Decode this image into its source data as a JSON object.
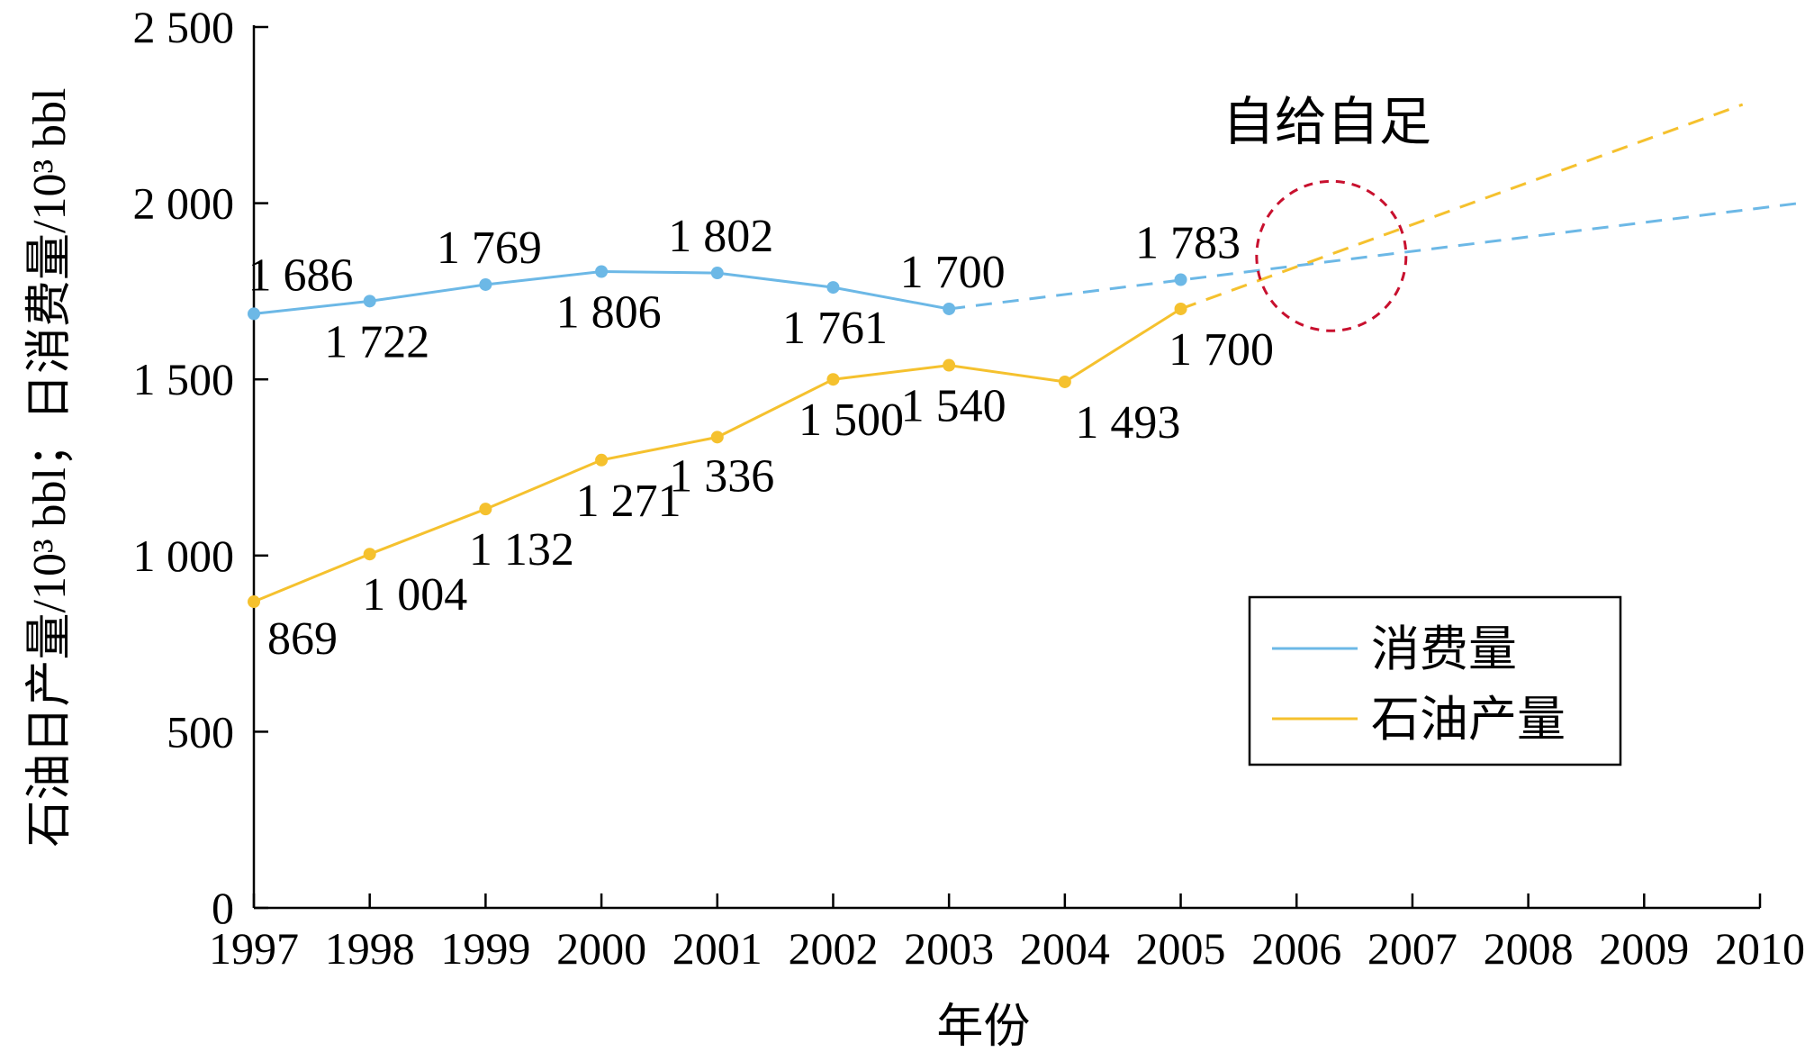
{
  "chart_data": {
    "type": "line",
    "xlabel": "年份",
    "ylabel": "石油日产量/10³ bbl；日消费量/10³ bbl",
    "x_categories": [
      "1997",
      "1998",
      "1999",
      "2000",
      "2001",
      "2002",
      "2003",
      "2004",
      "2005",
      "2006",
      "2007",
      "2008",
      "2009",
      "2010"
    ],
    "ylim": [
      0,
      2500
    ],
    "yticks": [
      0,
      500,
      1000,
      1500,
      2000,
      2500
    ],
    "ytick_labels": [
      "0",
      "500",
      "1 000",
      "1 500",
      "2 000",
      "2 500"
    ],
    "grid": false,
    "legend_position": "lower-right",
    "series": [
      {
        "name": "消费量",
        "color": "#6cb8e6",
        "x": [
          1997,
          1998,
          1999,
          2000,
          2001,
          2002,
          2003,
          2005
        ],
        "values": [
          1686,
          1722,
          1769,
          1806,
          1802,
          1761,
          1700,
          1783
        ],
        "labels": [
          "1 686",
          "1 722",
          "1 769",
          "1 806",
          "1 802",
          "1 761",
          "1 700",
          "1 783"
        ],
        "projection": {
          "style": "dashed",
          "x": [
            2003,
            2010.95
          ],
          "values": [
            1700,
            2025
          ]
        }
      },
      {
        "name": "石油产量",
        "color": "#f5c12e",
        "x": [
          1997,
          1998,
          1999,
          2000,
          2001,
          2002,
          2003,
          2004,
          2005
        ],
        "values": [
          869,
          1004,
          1132,
          1271,
          1336,
          1500,
          1540,
          1493,
          1700
        ],
        "labels": [
          "869",
          "1 004",
          "1 132",
          "1 271",
          "1 336",
          "1 500",
          "1 540",
          "1 493",
          "1 700"
        ],
        "projection": {
          "style": "dashed",
          "x": [
            2005,
            2009.85
          ],
          "values": [
            1700,
            2280
          ]
        }
      }
    ],
    "annotation": {
      "text": "自给自足",
      "x": 2006.3,
      "y": 1850,
      "circle_color": "#c8102e"
    }
  }
}
